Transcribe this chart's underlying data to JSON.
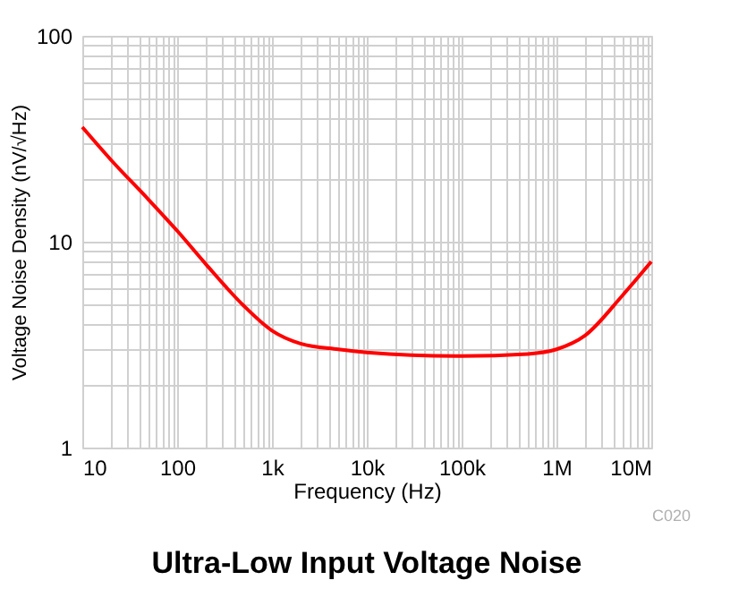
{
  "chart_data": {
    "type": "line",
    "title": "Ultra-Low Input Voltage Noise",
    "xlabel": "Frequency (Hz)",
    "ylabel": "Voltage Noise Density (nV/√Hz)",
    "annotations": [
      "C020"
    ],
    "x": [
      10,
      20,
      50,
      100,
      200,
      500,
      1000,
      2000,
      5000,
      10000,
      100000,
      500000,
      1000000,
      2000000,
      5000000,
      10000000
    ],
    "series": [
      {
        "color": "#ff0000",
        "values": [
          36,
          25,
          16,
          11.3,
          7.8,
          4.9,
          3.7,
          3.2,
          3.0,
          2.9,
          2.78,
          2.85,
          3.0,
          3.5,
          5.5,
          8.0
        ]
      }
    ],
    "log": "xy",
    "grid": true,
    "marker": "none",
    "line_style": "solid",
    "xlim": [
      10,
      10000000
    ],
    "ylim": [
      1,
      100
    ],
    "xticks": [
      10,
      {
        "value": 20,
        "label": null
      },
      {
        "value": 30,
        "label": null
      },
      {
        "value": 40,
        "label": null
      },
      {
        "value": 50,
        "label": null
      },
      {
        "value": 60,
        "label": null
      },
      {
        "value": 70,
        "label": null
      },
      {
        "value": 80,
        "label": null
      },
      {
        "value": 90,
        "label": null
      },
      100,
      {
        "value": 200,
        "label": null
      },
      {
        "value": 300,
        "label": null
      },
      {
        "value": 400,
        "label": null
      },
      {
        "value": 500,
        "label": null
      },
      {
        "value": 600,
        "label": null
      },
      {
        "value": 700,
        "label": null
      },
      {
        "value": 800,
        "label": null
      },
      {
        "value": 900,
        "label": null
      },
      {
        "value": 1000,
        "label": "1k"
      },
      {
        "value": 2000,
        "label": null
      },
      {
        "value": 3000,
        "label": null
      },
      {
        "value": 4000,
        "label": null
      },
      {
        "value": 5000,
        "label": null
      },
      {
        "value": 6000,
        "label": null
      },
      {
        "value": 7000,
        "label": null
      },
      {
        "value": 8000,
        "label": null
      },
      {
        "value": 9000,
        "label": null
      },
      {
        "value": 10000,
        "label": "10k"
      },
      {
        "value": 20000,
        "label": null
      },
      {
        "value": 30000,
        "label": null
      },
      {
        "value": 40000,
        "label": null
      },
      {
        "value": 50000,
        "label": null
      },
      {
        "value": 60000,
        "label": null
      },
      {
        "value": 70000,
        "label": null
      },
      {
        "value": 80000,
        "label": null
      },
      {
        "value": 90000,
        "label": null
      },
      {
        "value": 100000,
        "label": "100k"
      },
      {
        "value": 200000,
        "label": null
      },
      {
        "value": 300000,
        "label": null
      },
      {
        "value": 400000,
        "label": null
      },
      {
        "value": 500000,
        "label": null
      },
      {
        "value": 600000,
        "label": null
      },
      {
        "value": 700000,
        "label": null
      },
      {
        "value": 800000,
        "label": null
      },
      {
        "value": 900000,
        "label": null
      },
      {
        "value": 1000000,
        "label": "1M"
      },
      {
        "value": 2000000,
        "label": null
      },
      {
        "value": 3000000,
        "label": null
      },
      {
        "value": 4000000,
        "label": null
      },
      {
        "value": 5000000,
        "label": null
      },
      {
        "value": 6000000,
        "label": null
      },
      {
        "value": 7000000,
        "label": null
      },
      {
        "value": 8000000,
        "label": null
      },
      {
        "value": 9000000,
        "label": null
      },
      {
        "value": 10000000,
        "label": "10M"
      }
    ],
    "yticks": [
      1,
      {
        "value": 2,
        "label": null
      },
      {
        "value": 3,
        "label": null
      },
      {
        "value": 4,
        "label": null
      },
      {
        "value": 5,
        "label": null
      },
      {
        "value": 6,
        "label": null
      },
      {
        "value": 7,
        "label": null
      },
      {
        "value": 8,
        "label": null
      },
      {
        "value": 9,
        "label": null
      },
      10,
      {
        "value": 20,
        "label": null
      },
      {
        "value": 30,
        "label": null
      },
      {
        "value": 40,
        "label": null
      },
      {
        "value": 50,
        "label": null
      },
      {
        "value": 60,
        "label": null
      },
      {
        "value": 70,
        "label": null
      },
      {
        "value": 80,
        "label": null
      },
      {
        "value": 90,
        "label": null
      },
      100
    ]
  }
}
